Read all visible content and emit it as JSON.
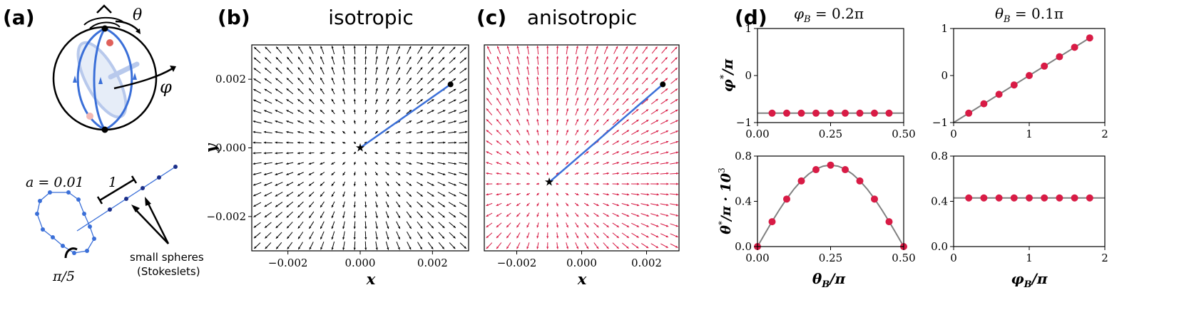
{
  "panel_labels": {
    "a": "(a)",
    "b": "(b)",
    "c": "(c)",
    "d": "(d)"
  },
  "panel_a": {
    "theta_label": "θ",
    "phi_label": "φ",
    "a_label": "a = 0.01",
    "length_label": "1",
    "angle_label": "π/5",
    "spheres_label_1": "small spheres",
    "spheres_label_2": "(Stokeslets)",
    "colors": {
      "blue": "#3a6fd8",
      "red": "#e0605a"
    }
  },
  "chart_data": [
    {
      "id": "b",
      "type": "quiver",
      "title": "isotropic",
      "xlabel": "x",
      "ylabel": "y",
      "xlim": [
        -0.003,
        0.003
      ],
      "ylim": [
        -0.003,
        0.003
      ],
      "xticks": [
        "−0.002",
        "0.000",
        "0.002"
      ],
      "yticks": [
        "−0.002",
        "0.000",
        "0.002"
      ],
      "arrow_color": "#000000",
      "center": [
        0.0,
        0.0
      ],
      "trajectory": {
        "start": [
          0.0,
          0.0
        ],
        "end": [
          0.0025,
          0.00185
        ],
        "color": "#3a6fd8"
      }
    },
    {
      "id": "c",
      "type": "quiver",
      "title": "anisotropic",
      "xlabel": "x",
      "ylabel": "",
      "xlim": [
        -0.003,
        0.003
      ],
      "ylim": [
        -0.003,
        0.003
      ],
      "xticks": [
        "−0.002",
        "0.000",
        "0.002"
      ],
      "yticks": [],
      "arrow_color": "#d81b45",
      "center": [
        -0.001,
        -0.001
      ],
      "trajectory": {
        "start": [
          -0.001,
          -0.001
        ],
        "end": [
          0.0025,
          0.00185
        ],
        "color": "#3a6fd8"
      }
    },
    {
      "id": "d1",
      "type": "scatter",
      "title": "φ_B = 0.2π",
      "title_parts": {
        "sym": "φ",
        "sub": "B",
        "rest": " = 0.2π"
      },
      "ylabel": "φ*/π",
      "ylabel_parts": {
        "sym": "φ",
        "sup": "*",
        "rest": "/π"
      },
      "xlim": [
        0,
        0.5
      ],
      "ylim": [
        -1,
        1
      ],
      "xticks": [
        0,
        0.25,
        0.5
      ],
      "xtick_labels": [
        "0.00",
        "0.25",
        "0.50"
      ],
      "yticks": [
        -1,
        0,
        1
      ],
      "ytick_labels": [
        "−1",
        "0",
        "1"
      ],
      "line": {
        "x": [
          0,
          0.5
        ],
        "y": [
          -0.8,
          -0.8
        ]
      },
      "points": {
        "x": [
          0.05,
          0.1,
          0.15,
          0.2,
          0.25,
          0.3,
          0.35,
          0.4,
          0.45
        ],
        "y": [
          -0.8,
          -0.8,
          -0.8,
          -0.8,
          -0.8,
          -0.8,
          -0.8,
          -0.8,
          -0.8
        ]
      }
    },
    {
      "id": "d2",
      "type": "scatter",
      "title": "θ_B = 0.1π",
      "title_parts": {
        "sym": "θ",
        "sub": "B",
        "rest": " = 0.1π"
      },
      "ylabel": "",
      "xlim": [
        0,
        2
      ],
      "ylim": [
        -1,
        1
      ],
      "xticks": [
        0,
        1,
        2
      ],
      "xtick_labels": [
        "0",
        "1",
        "2"
      ],
      "yticks": [
        -1,
        0,
        1
      ],
      "ytick_labels": [
        "−1",
        "0",
        "1"
      ],
      "line": {
        "x": [
          0,
          1.8
        ],
        "y": [
          -1,
          0.8
        ]
      },
      "points": {
        "x": [
          0.2,
          0.4,
          0.6,
          0.8,
          1.0,
          1.2,
          1.4,
          1.6,
          1.8
        ],
        "y": [
          -0.8,
          -0.6,
          -0.4,
          -0.2,
          0.0,
          0.2,
          0.4,
          0.6,
          0.8
        ]
      }
    },
    {
      "id": "d3",
      "type": "scatter",
      "xlabel": "θ_B/π",
      "xlabel_parts": {
        "sym": "θ",
        "sub": "B",
        "rest": "/π"
      },
      "ylabel": "θ*/π · 10³",
      "ylabel_parts": {
        "sym": "θ",
        "sup": "*",
        "rest": "/π · 10",
        "sup2": "3"
      },
      "xlim": [
        0,
        0.5
      ],
      "ylim": [
        0,
        0.8
      ],
      "xticks": [
        0,
        0.25,
        0.5
      ],
      "xtick_labels": [
        "0.00",
        "0.25",
        "0.50"
      ],
      "yticks": [
        0,
        0.4,
        0.8
      ],
      "ytick_labels": [
        "0.0",
        "0.4",
        "0.8"
      ],
      "line": {
        "x": [
          0,
          0.025,
          0.05,
          0.075,
          0.1,
          0.125,
          0.15,
          0.175,
          0.2,
          0.225,
          0.25,
          0.275,
          0.3,
          0.325,
          0.35,
          0.375,
          0.4,
          0.425,
          0.45,
          0.475,
          0.5
        ],
        "y": [
          0,
          0.112,
          0.222,
          0.326,
          0.423,
          0.509,
          0.582,
          0.641,
          0.685,
          0.711,
          0.72,
          0.711,
          0.685,
          0.641,
          0.582,
          0.509,
          0.423,
          0.326,
          0.222,
          0.112,
          0
        ]
      },
      "points": {
        "x": [
          0,
          0.05,
          0.1,
          0.15,
          0.2,
          0.25,
          0.3,
          0.35,
          0.4,
          0.45,
          0.5
        ],
        "y": [
          0,
          0.22,
          0.42,
          0.58,
          0.68,
          0.72,
          0.68,
          0.58,
          0.42,
          0.22,
          0
        ]
      }
    },
    {
      "id": "d4",
      "type": "scatter",
      "xlabel": "φ_B/π",
      "xlabel_parts": {
        "sym": "φ",
        "sub": "B",
        "rest": "/π"
      },
      "ylabel": "",
      "xlim": [
        0,
        2
      ],
      "ylim": [
        0,
        0.8
      ],
      "xticks": [
        0,
        1,
        2
      ],
      "xtick_labels": [
        "0",
        "1",
        "2"
      ],
      "yticks": [
        0,
        0.4,
        0.8
      ],
      "ytick_labels": [
        "0.0",
        "0.4",
        "0.8"
      ],
      "line": {
        "x": [
          0,
          2
        ],
        "y": [
          0.43,
          0.43
        ]
      },
      "points": {
        "x": [
          0.2,
          0.4,
          0.6,
          0.8,
          1.0,
          1.2,
          1.4,
          1.6,
          1.8
        ],
        "y": [
          0.43,
          0.43,
          0.43,
          0.43,
          0.43,
          0.43,
          0.43,
          0.43,
          0.43
        ]
      }
    }
  ]
}
